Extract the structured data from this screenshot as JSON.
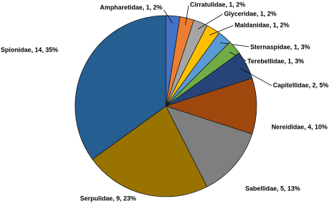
{
  "chart_data": {
    "type": "pie",
    "labels": [
      "Ampharetidae, 1, 2%",
      "Cirratulidae, 1, 2%",
      "Glyceridae, 1, 2%",
      "Maldanidae, 1, 2%",
      "Sternaspidae, 1, 3%",
      "Terebellidae, 1, 3%",
      "Capitellidae, 2, 5%",
      "Nereididae, 4, 10%",
      "Sabellidae, 5, 13%",
      "Serpulidae, 9, 23%",
      "Spionidae, 14, 35%"
    ],
    "values": [
      1,
      1,
      1,
      1,
      1,
      1,
      2,
      4,
      5,
      9,
      14
    ],
    "colors": [
      "#4472c4",
      "#ed7d31",
      "#a5a5a5",
      "#ffc000",
      "#5b9bd5",
      "#70ad47",
      "#264478",
      "#9e480e",
      "#7f7f7f",
      "#997300",
      "#255e91"
    ]
  }
}
